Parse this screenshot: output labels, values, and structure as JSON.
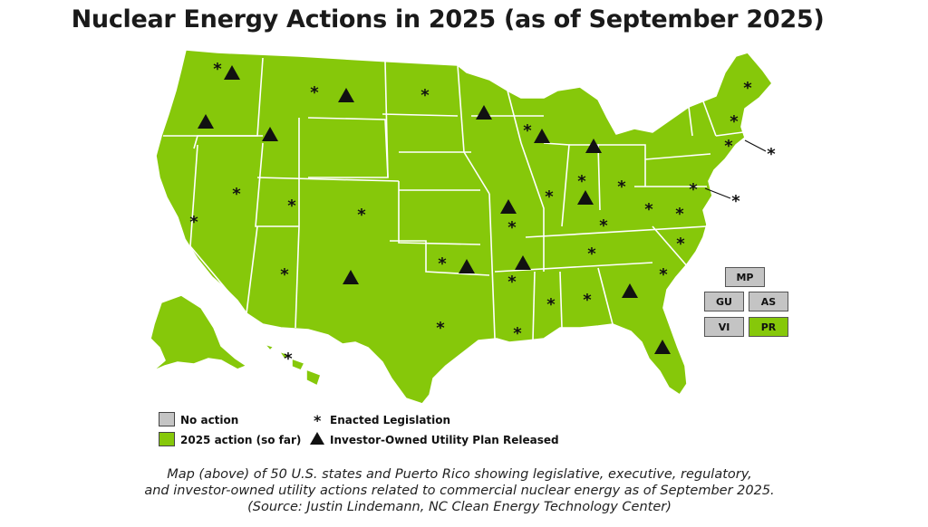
{
  "title": "Nuclear Energy Actions in 2025 (as of September 2025)",
  "colors": {
    "action": "#86c80a",
    "no_action": "#c4c4c4",
    "marker": "#111111"
  },
  "territories": [
    {
      "label": "MP",
      "status": "no action"
    },
    {
      "label": "GU",
      "status": "no action"
    },
    {
      "label": "AS",
      "status": "no action"
    },
    {
      "label": "VI",
      "status": "no action"
    },
    {
      "label": "PR",
      "status": "2025 action (so far)"
    }
  ],
  "legend": {
    "no_action": "No action",
    "action": "2025 action (so far)",
    "enacted": "Enacted Legislation",
    "utility": "Investor-Owned Utility Plan Released",
    "star_symbol": "*"
  },
  "caption": [
    "Map (above) of 50 U.S. states and Puerto Rico showing legislative, executive, regulatory,",
    "and investor-owned utility actions related to commercial nuclear energy as of September 2025.",
    "(Source: Justin Lindemann, NC Clean Energy Technology Center)"
  ]
}
